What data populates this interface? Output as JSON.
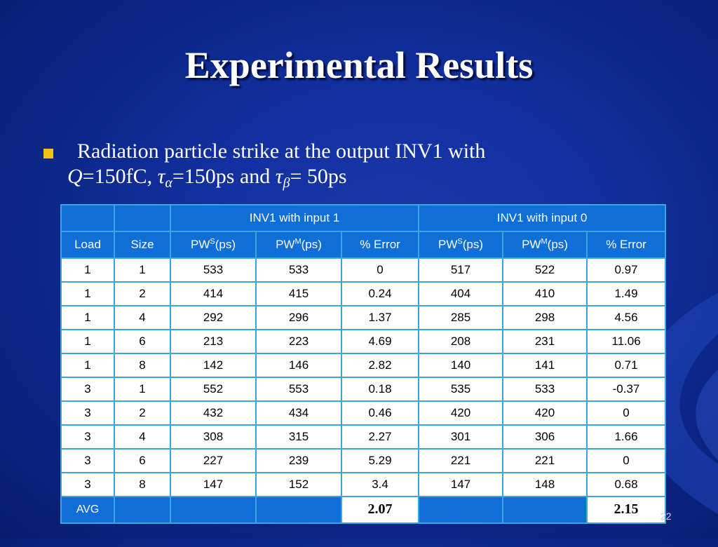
{
  "slide": {
    "title": "Experimental Results",
    "bullet_line1": "Radiation particle strike at the output INV1 with",
    "bullet_q": "Q",
    "bullet_q_val": "=150fC, ",
    "bullet_tau": "τ",
    "bullet_alpha": "α",
    "bullet_alpha_val": "=150ps and ",
    "bullet_beta": "β",
    "bullet_beta_val": "= 50ps",
    "page_number": "22"
  },
  "colors": {
    "bullet": "#f2c21a",
    "header_bg": "#0f6ed8",
    "border": "#3aa6dc"
  },
  "table": {
    "group_headers": [
      "INV1 with input 1",
      "INV1 with input 0"
    ],
    "col_load": "Load",
    "col_size": "Size",
    "col_pw": "PW",
    "sup_s": "S",
    "sup_m": "M",
    "col_ps": "(ps)",
    "col_error": "% Error",
    "rows": [
      [
        "1",
        "1",
        "533",
        "533",
        "0",
        "517",
        "522",
        "0.97"
      ],
      [
        "1",
        "2",
        "414",
        "415",
        "0.24",
        "404",
        "410",
        "1.49"
      ],
      [
        "1",
        "4",
        "292",
        "296",
        "1.37",
        "285",
        "298",
        "4.56"
      ],
      [
        "1",
        "6",
        "213",
        "223",
        "4.69",
        "208",
        "231",
        "11.06"
      ],
      [
        "1",
        "8",
        "142",
        "146",
        "2.82",
        "140",
        "141",
        "0.71"
      ],
      [
        "3",
        "1",
        "552",
        "553",
        "0.18",
        "535",
        "533",
        "-0.37"
      ],
      [
        "3",
        "2",
        "432",
        "434",
        "0.46",
        "420",
        "420",
        "0"
      ],
      [
        "3",
        "4",
        "308",
        "315",
        "2.27",
        "301",
        "306",
        "1.66"
      ],
      [
        "3",
        "6",
        "227",
        "239",
        "5.29",
        "221",
        "221",
        "0"
      ],
      [
        "3",
        "8",
        "147",
        "152",
        "3.4",
        "147",
        "148",
        "0.68"
      ]
    ],
    "avg_label": "AVG",
    "avg_error_1": "2.07",
    "avg_error_0": "2.15"
  }
}
